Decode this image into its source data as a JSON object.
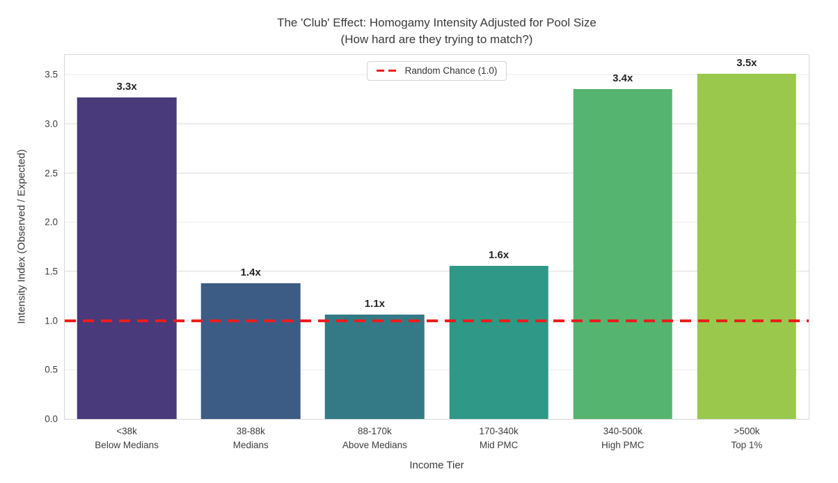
{
  "chart_data": {
    "type": "bar",
    "title": "The 'Club' Effect: Homogamy Intensity Adjusted for Pool Size",
    "subtitle": "(How hard are they trying to match?)",
    "xlabel": "Income Tier",
    "ylabel": "Intensity Index (Observed / Expected)",
    "categories": [
      "<38k\nBelow Medians",
      "38-88k\nMedians",
      "88-170k\nAbove Medians",
      "170-340k\nMid PMC",
      "340-500k\nHigh PMC",
      ">500k\nTop 1%"
    ],
    "values": [
      3.27,
      1.38,
      1.06,
      1.56,
      3.35,
      3.51
    ],
    "bar_labels": [
      "3.3x",
      "1.4x",
      "1.1x",
      "1.6x",
      "3.4x",
      "3.5x"
    ],
    "bar_colors": [
      "#483a7b",
      "#3d5c85",
      "#347a86",
      "#2f9886",
      "#55b46f",
      "#99c84c"
    ],
    "ylim": [
      0,
      3.7
    ],
    "y_ticks": [
      "0.0",
      "0.5",
      "1.0",
      "1.5",
      "2.0",
      "2.5",
      "3.0",
      "3.5"
    ],
    "grid": "horizontal",
    "legend": {
      "label": "Random Chance (1.0)",
      "position": "upper center",
      "line_color": "#ee1c1c",
      "line_style": "dashed"
    },
    "reference_line": {
      "value": 1.0,
      "style": "dashed",
      "color": "#ee1c1c",
      "label": "Random Chance (1.0)"
    }
  }
}
